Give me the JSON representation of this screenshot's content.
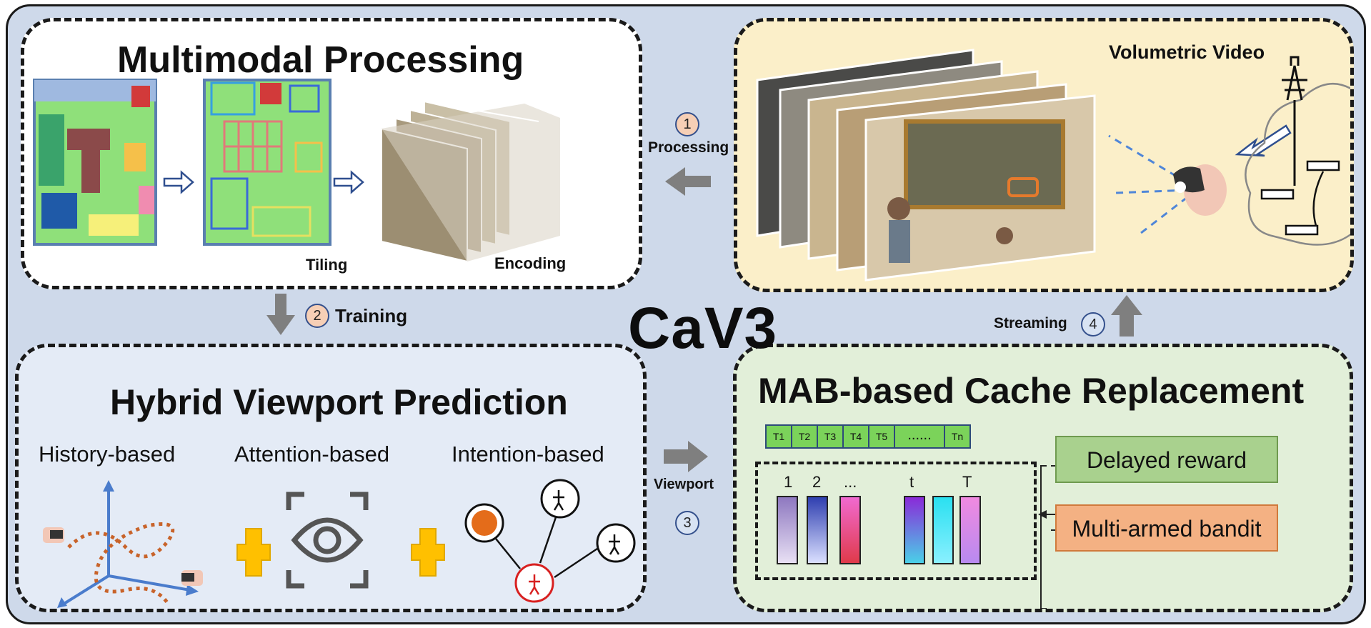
{
  "center_title": "CaV3",
  "multimodal": {
    "title": "Multimodal Processing",
    "tiling_label": "Tiling",
    "encoding_label": "Encoding"
  },
  "volumetric": {
    "title": "Volumetric Video"
  },
  "hybrid": {
    "title": "Hybrid Viewport Prediction",
    "history_label": "History-based",
    "attention_label": "Attention-based",
    "intention_label": "Intention-based"
  },
  "mab": {
    "title": "MAB-based Cache Replacement",
    "sequence": [
      "T1",
      "T2",
      "T3",
      "T4",
      "T5",
      "......",
      "Tn"
    ],
    "bar_labels": [
      "1",
      "2",
      "...",
      "t",
      "T"
    ],
    "delayed_reward": "Delayed reward",
    "bandit": "Multi-armed bandit"
  },
  "steps": {
    "s1": {
      "number": "1",
      "label": "Processing"
    },
    "s2": {
      "number": "2",
      "label": "Training"
    },
    "s3": {
      "number": "3",
      "label": "Viewport"
    },
    "s4": {
      "number": "4",
      "label": "Streaming"
    }
  },
  "colors": {
    "frame_bg": "#ced9ea",
    "volumetric_bg": "#fbefc9",
    "mab_bg": "#e2efd9",
    "reward_box": "#a9d18e",
    "bandit_box": "#f4b183",
    "tile_green": "#7bd35a",
    "plus_yellow": "#ffc000",
    "arrow_gray": "#7f7f7f"
  }
}
